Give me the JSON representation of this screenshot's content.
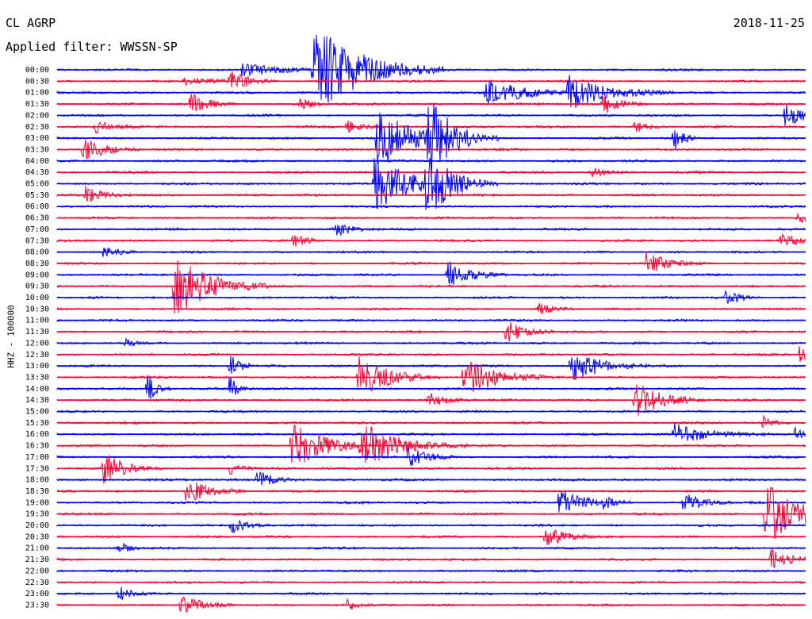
{
  "header": {
    "station": "CL AGRP",
    "filter": "Applied filter: WWSSN-SP",
    "date": "2018-11-25"
  },
  "chart_data": {
    "type": "line",
    "title": "",
    "ylabel": "HHZ - 100000",
    "ytick_labels": [
      "00:00",
      "00:30",
      "01:00",
      "01:30",
      "02:00",
      "02:30",
      "03:00",
      "03:30",
      "04:00",
      "04:30",
      "05:00",
      "05:30",
      "06:00",
      "06:30",
      "07:00",
      "07:30",
      "08:00",
      "08:30",
      "09:00",
      "09:30",
      "10:00",
      "10:30",
      "11:00",
      "11:30",
      "12:00",
      "12:30",
      "13:00",
      "13:30",
      "14:00",
      "14:30",
      "15:00",
      "15:30",
      "16:00",
      "16:30",
      "17:00",
      "17:30",
      "18:00",
      "18:30",
      "19:00",
      "19:30",
      "20:00",
      "20:30",
      "21:00",
      "21:30",
      "22:00",
      "22:30",
      "23:00",
      "23:30"
    ],
    "trace_colors": [
      "#0000ff",
      "#ff0033"
    ],
    "grid": false,
    "legend": "none"
  }
}
